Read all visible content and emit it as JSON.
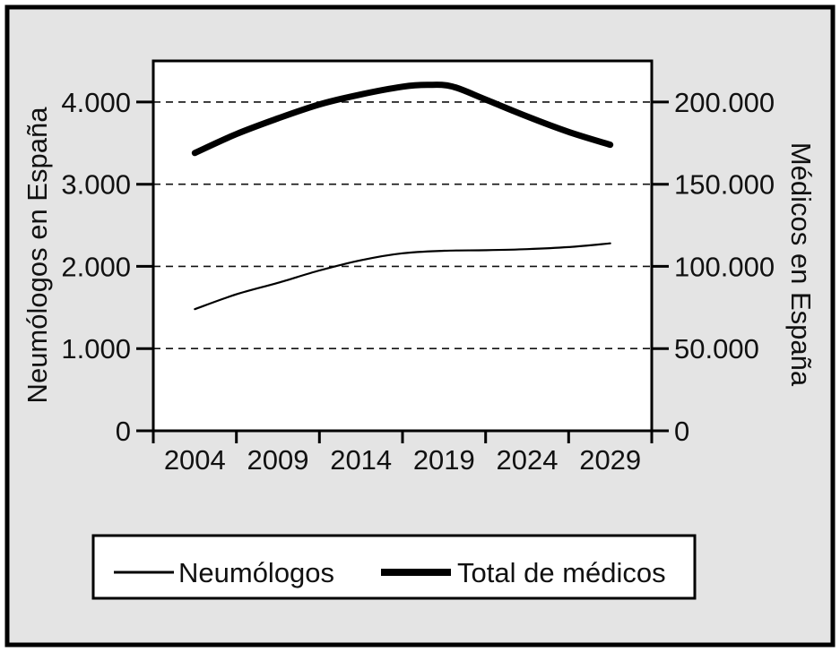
{
  "figure": {
    "background_color": "#e4e4e4",
    "plot_background_color": "#ffffff",
    "border_color": "#000000"
  },
  "chart_data": {
    "type": "line",
    "title": "",
    "x_tick_years": [
      2004,
      2009,
      2014,
      2019,
      2024,
      2029
    ],
    "x_tick_labels": [
      "2004",
      "2009",
      "2014",
      "2019",
      "2024",
      "2029"
    ],
    "x_range_years": [
      2001.5,
      2031.5
    ],
    "y_left": {
      "label": "Neumólogos en España",
      "ticks": [
        0,
        1000,
        2000,
        3000,
        4000
      ],
      "tick_labels": [
        "0",
        "1.000",
        "2.000",
        "3.000",
        "4.000"
      ],
      "range": [
        0,
        4500
      ]
    },
    "y_right": {
      "label": "Médicos en España",
      "ticks": [
        0,
        50000,
        100000,
        150000,
        200000
      ],
      "tick_labels": [
        "0",
        "50.000",
        "100.000",
        "150.000",
        "200.000"
      ],
      "range": [
        0,
        225000
      ]
    },
    "grid": "horizontal-dashed",
    "legend": {
      "position": "bottom",
      "entries": [
        {
          "label": "Neumólogos",
          "weight": "thin"
        },
        {
          "label": "Total de médicos",
          "weight": "thick"
        }
      ]
    },
    "series": [
      {
        "name": "Neumólogos",
        "axis": "left",
        "style": "thin",
        "points": [
          [
            2004,
            1480
          ],
          [
            2006.5,
            1660
          ],
          [
            2009,
            1800
          ],
          [
            2011.5,
            1950
          ],
          [
            2014,
            2075
          ],
          [
            2016.5,
            2160
          ],
          [
            2019,
            2190
          ],
          [
            2021.5,
            2197
          ],
          [
            2024,
            2210
          ],
          [
            2026.5,
            2235
          ],
          [
            2029,
            2280
          ]
        ]
      },
      {
        "name": "Total de médicos",
        "axis": "right",
        "style": "thick",
        "points": [
          [
            2004,
            169000
          ],
          [
            2006.5,
            180500
          ],
          [
            2009,
            190000
          ],
          [
            2011.5,
            198500
          ],
          [
            2014,
            204600
          ],
          [
            2016.5,
            209300
          ],
          [
            2018,
            210400
          ],
          [
            2019.5,
            209400
          ],
          [
            2021.5,
            201500
          ],
          [
            2024,
            191200
          ],
          [
            2026.5,
            181800
          ],
          [
            2029,
            174000
          ]
        ]
      }
    ]
  }
}
